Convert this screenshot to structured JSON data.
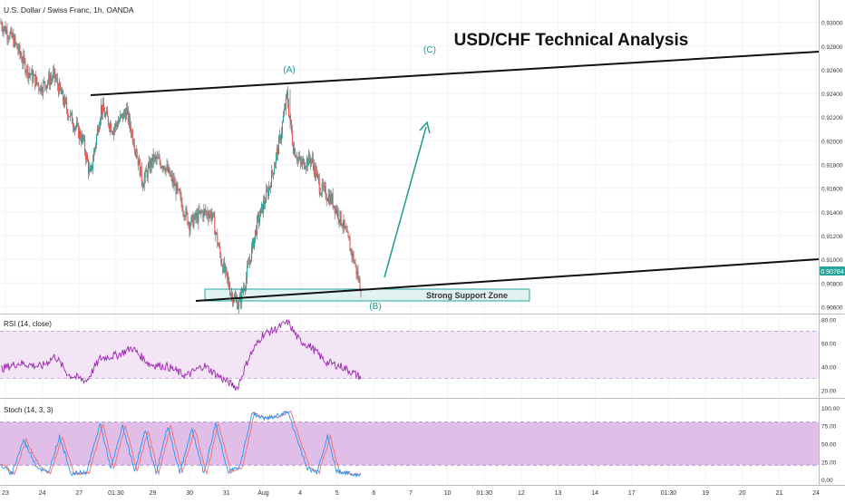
{
  "symbol_header": "U.S. Dollar / Swiss Franc, 1h, OANDA",
  "headline": "USD/CHF Technical Analysis",
  "waves": {
    "a": "(A)",
    "b": "(B)",
    "c": "(C)"
  },
  "support_zone": {
    "label": "Strong Support Zone",
    "low": 0.9058,
    "high": 0.9067
  },
  "last_price_label": "0.90784",
  "colors": {
    "up": "#26a69a",
    "down": "#ef5350",
    "wick": "#3d3d3d",
    "accent": "#1a9d8c",
    "rsi": "#9c27b0",
    "stoch_k": "#2196f3",
    "stoch_d": "#ef6c6c",
    "panel_fill": "#f3e5f5",
    "stoch_fill": "#e1bee7",
    "price_badge": "#26a69a"
  },
  "indicators": {
    "rsi": {
      "title": "RSI (14, close)",
      "ticks": [
        "80.00",
        "60.00",
        "40.00",
        "20.00"
      ],
      "upper": 70,
      "lower": 30
    },
    "stoch": {
      "title": "Stoch (14, 3, 3)",
      "ticks": [
        "100.00",
        "75.00",
        "50.00",
        "25.00",
        "0.00"
      ],
      "upper": 80,
      "lower": 20
    }
  },
  "chart_data": {
    "type": "candlestick",
    "title": "U.S. Dollar / Swiss Franc, 1h, OANDA",
    "ylim": [
      0.9055,
      0.9315
    ],
    "price_ticks": [
      "0.93000",
      "0.92800",
      "0.92600",
      "0.92400",
      "0.92200",
      "0.92000",
      "0.91800",
      "0.91600",
      "0.91400",
      "0.91200",
      "0.91000",
      "0.90800",
      "0.90600"
    ],
    "x_ticks": [
      "23",
      "24",
      "27",
      "01:30",
      "29",
      "30",
      "31",
      "Aug",
      "4",
      "5",
      "6",
      "7",
      "10",
      "01:30",
      "12",
      "13",
      "14",
      "17",
      "01:30",
      "19",
      "20",
      "21",
      "24"
    ],
    "anchors": [
      [
        0,
        0.93
      ],
      [
        15,
        0.9285
      ],
      [
        30,
        0.926
      ],
      [
        45,
        0.9245
      ],
      [
        60,
        0.9255
      ],
      [
        75,
        0.9225
      ],
      [
        92,
        0.92
      ],
      [
        100,
        0.917
      ],
      [
        112,
        0.9228
      ],
      [
        125,
        0.921
      ],
      [
        140,
        0.9225
      ],
      [
        150,
        0.9195
      ],
      [
        158,
        0.9165
      ],
      [
        170,
        0.9185
      ],
      [
        182,
        0.918
      ],
      [
        195,
        0.916
      ],
      [
        210,
        0.913
      ],
      [
        225,
        0.914
      ],
      [
        235,
        0.9138
      ],
      [
        245,
        0.91
      ],
      [
        257,
        0.907
      ],
      [
        265,
        0.9062
      ],
      [
        273,
        0.9085
      ],
      [
        285,
        0.913
      ],
      [
        298,
        0.916
      ],
      [
        310,
        0.92
      ],
      [
        318,
        0.9238
      ],
      [
        325,
        0.9195
      ],
      [
        333,
        0.918
      ],
      [
        345,
        0.9185
      ],
      [
        355,
        0.916
      ],
      [
        368,
        0.915
      ],
      [
        380,
        0.913
      ],
      [
        392,
        0.91
      ],
      [
        399,
        0.9078
      ]
    ],
    "rsi_anchors": [
      [
        0,
        38
      ],
      [
        20,
        43
      ],
      [
        45,
        40
      ],
      [
        60,
        49
      ],
      [
        75,
        33
      ],
      [
        95,
        28
      ],
      [
        110,
        47
      ],
      [
        130,
        50
      ],
      [
        145,
        56
      ],
      [
        165,
        42
      ],
      [
        185,
        40
      ],
      [
        205,
        32
      ],
      [
        225,
        41
      ],
      [
        245,
        30
      ],
      [
        262,
        22
      ],
      [
        275,
        48
      ],
      [
        290,
        67
      ],
      [
        305,
        72
      ],
      [
        318,
        78
      ],
      [
        330,
        63
      ],
      [
        345,
        56
      ],
      [
        360,
        44
      ],
      [
        378,
        40
      ],
      [
        392,
        34
      ],
      [
        399,
        31
      ]
    ],
    "stoch_anchors": [
      [
        0,
        20
      ],
      [
        12,
        8
      ],
      [
        25,
        55
      ],
      [
        40,
        18
      ],
      [
        52,
        8
      ],
      [
        65,
        60
      ],
      [
        78,
        8
      ],
      [
        95,
        10
      ],
      [
        110,
        78
      ],
      [
        122,
        15
      ],
      [
        135,
        75
      ],
      [
        148,
        12
      ],
      [
        160,
        68
      ],
      [
        172,
        8
      ],
      [
        185,
        75
      ],
      [
        198,
        10
      ],
      [
        212,
        70
      ],
      [
        225,
        8
      ],
      [
        238,
        78
      ],
      [
        252,
        10
      ],
      [
        265,
        18
      ],
      [
        278,
        92
      ],
      [
        292,
        85
      ],
      [
        305,
        88
      ],
      [
        318,
        95
      ],
      [
        330,
        50
      ],
      [
        340,
        15
      ],
      [
        350,
        10
      ],
      [
        362,
        60
      ],
      [
        372,
        12
      ],
      [
        385,
        8
      ],
      [
        399,
        6
      ]
    ]
  }
}
